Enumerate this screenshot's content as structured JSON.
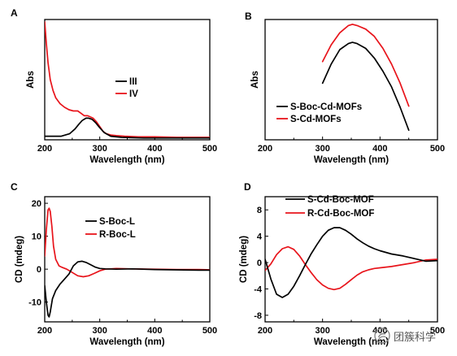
{
  "watermark": {
    "text": "团簇科学"
  },
  "chart_data": [
    {
      "panel": "A",
      "type": "line",
      "xlabel": "Wavelength (nm)",
      "ylabel": "Abs",
      "xlim": [
        200,
        500
      ],
      "ylim": [
        0,
        1
      ],
      "xticks": [
        200,
        300,
        400,
        500
      ],
      "yticks": [],
      "legend": "center-right",
      "series": [
        {
          "name": "III",
          "color": "#000000",
          "x": [
            200,
            215,
            230,
            245,
            255,
            262,
            268,
            275,
            280,
            286,
            293,
            300,
            308,
            320,
            340,
            380,
            420,
            460,
            500
          ],
          "y": [
            0.03,
            0.03,
            0.03,
            0.05,
            0.09,
            0.13,
            0.16,
            0.18,
            0.18,
            0.17,
            0.14,
            0.1,
            0.06,
            0.03,
            0.02,
            0.015,
            0.015,
            0.015,
            0.015
          ]
        },
        {
          "name": "IV",
          "color": "#e8141b",
          "x": [
            200,
            203,
            206,
            210,
            215,
            220,
            228,
            236,
            244,
            252,
            260,
            266,
            272,
            278,
            283,
            288,
            294,
            300,
            306,
            312,
            320,
            330,
            345,
            370,
            400,
            440,
            480,
            500
          ],
          "y": [
            0.98,
            0.8,
            0.64,
            0.5,
            0.41,
            0.35,
            0.3,
            0.27,
            0.25,
            0.24,
            0.24,
            0.22,
            0.2,
            0.2,
            0.19,
            0.18,
            0.15,
            0.11,
            0.07,
            0.05,
            0.04,
            0.035,
            0.03,
            0.025,
            0.025,
            0.02,
            0.02,
            0.02
          ]
        }
      ]
    },
    {
      "panel": "B",
      "type": "line",
      "xlabel": "Wavelength (nm)",
      "ylabel": "Abs",
      "xlim": [
        200,
        500
      ],
      "ylim": [
        0,
        1
      ],
      "xticks": [
        200,
        300,
        400,
        500
      ],
      "yticks": [],
      "legend": "lower-left",
      "series": [
        {
          "name": "S-Boc-Cd-MOFs",
          "color": "#000000",
          "x": [
            300,
            315,
            330,
            345,
            352,
            360,
            375,
            390,
            405,
            420,
            435,
            450
          ],
          "y": [
            0.47,
            0.63,
            0.75,
            0.8,
            0.81,
            0.8,
            0.76,
            0.68,
            0.57,
            0.44,
            0.27,
            0.08
          ]
        },
        {
          "name": "S-Cd-MOFs",
          "color": "#e8141b",
          "x": [
            300,
            315,
            330,
            345,
            352,
            360,
            375,
            390,
            405,
            420,
            435,
            450
          ],
          "y": [
            0.65,
            0.79,
            0.89,
            0.95,
            0.96,
            0.95,
            0.92,
            0.86,
            0.76,
            0.63,
            0.47,
            0.28
          ]
        }
      ]
    },
    {
      "panel": "C",
      "type": "line",
      "xlabel": "Wavelength (nm)",
      "ylabel": "CD (mdeg)",
      "xlim": [
        200,
        500
      ],
      "ylim": [
        -16,
        22
      ],
      "xticks": [
        200,
        300,
        400,
        500
      ],
      "yticks": [
        -10,
        0,
        10,
        20
      ],
      "legend": "upper-center",
      "series": [
        {
          "name": "S-Boc-L",
          "color": "#000000",
          "x": [
            200,
            203,
            206,
            208,
            210,
            214,
            220,
            228,
            236,
            244,
            252,
            260,
            268,
            276,
            284,
            292,
            300,
            310,
            330,
            360,
            400,
            440,
            480,
            500
          ],
          "y": [
            -5,
            -10,
            -14,
            -14.5,
            -13,
            -9,
            -6.5,
            -4.5,
            -3,
            -1.5,
            1,
            2.2,
            2.4,
            2,
            1.3,
            0.6,
            0.2,
            0.1,
            0,
            0.1,
            -0.1,
            -0.2,
            -0.3,
            -0.3
          ]
        },
        {
          "name": "R-Boc-L",
          "color": "#e8141b",
          "x": [
            200,
            203,
            206,
            208,
            210,
            213,
            216,
            220,
            226,
            232,
            240,
            250,
            260,
            270,
            280,
            290,
            300,
            310,
            330,
            360,
            400,
            440,
            480,
            500
          ],
          "y": [
            4,
            12,
            18,
            18.5,
            17.5,
            13,
            7,
            3,
            1,
            0.5,
            0,
            -1,
            -2,
            -2.3,
            -2,
            -1.3,
            -0.5,
            0,
            0.2,
            0.1,
            0,
            -0.1,
            -0.1,
            -0.2
          ]
        }
      ]
    },
    {
      "panel": "D",
      "type": "line",
      "xlabel": "Wavelength (nm)",
      "ylabel": "CD (mdeg)",
      "xlim": [
        200,
        500
      ],
      "ylim": [
        -9,
        10
      ],
      "xticks": [
        200,
        300,
        400,
        500
      ],
      "yticks": [
        -8,
        -4,
        0,
        4,
        8
      ],
      "legend": "top-right",
      "series": [
        {
          "name": "S-Cd-Boc-MOF",
          "color": "#000000",
          "x": [
            200,
            210,
            220,
            230,
            240,
            250,
            260,
            270,
            280,
            290,
            300,
            310,
            320,
            330,
            340,
            350,
            360,
            370,
            380,
            390,
            400,
            420,
            440,
            460,
            480,
            500
          ],
          "y": [
            0.5,
            -2.5,
            -4.8,
            -5.3,
            -4.8,
            -3.6,
            -2,
            -0.3,
            1.3,
            2.7,
            4,
            4.9,
            5.3,
            5.3,
            4.9,
            4.3,
            3.6,
            3,
            2.5,
            2.1,
            1.8,
            1.3,
            1,
            0.6,
            0.2,
            0.3
          ]
        },
        {
          "name": "R-Cd-Boc-MOF",
          "color": "#e8141b",
          "x": [
            200,
            210,
            220,
            230,
            240,
            250,
            260,
            270,
            280,
            290,
            300,
            310,
            320,
            330,
            340,
            350,
            360,
            370,
            380,
            390,
            400,
            420,
            440,
            460,
            480,
            500
          ],
          "y": [
            -1.2,
            -0.2,
            1.2,
            2.1,
            2.4,
            2,
            1,
            -0.3,
            -1.5,
            -2.6,
            -3.4,
            -3.9,
            -4.1,
            -3.9,
            -3.3,
            -2.6,
            -1.9,
            -1.4,
            -1.1,
            -0.9,
            -0.8,
            -0.6,
            -0.3,
            0,
            0.4,
            0.5
          ]
        }
      ]
    }
  ]
}
